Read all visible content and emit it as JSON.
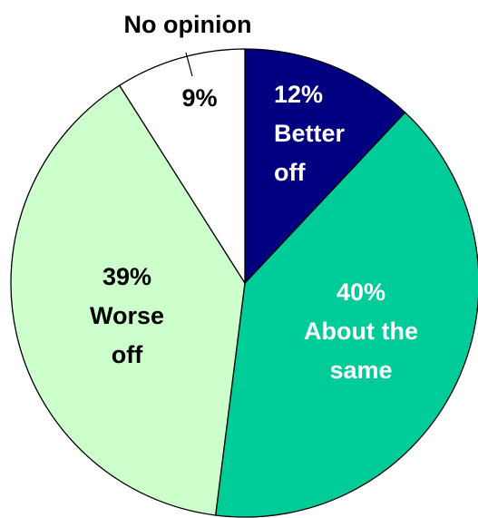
{
  "chart_data": {
    "type": "pie",
    "slices": [
      {
        "key": "better",
        "percent_label": "12%",
        "label_lines": [
          "Better",
          "off"
        ],
        "value": 12,
        "color": "#000080",
        "text_color": "#ffffff"
      },
      {
        "key": "same",
        "percent_label": "40%",
        "label_lines": [
          "About the",
          "same"
        ],
        "value": 40,
        "color": "#00cc99",
        "text_color": "#ffffff"
      },
      {
        "key": "worse",
        "percent_label": "39%",
        "label_lines": [
          "Worse",
          "off"
        ],
        "value": 39,
        "color": "#ccffcc",
        "text_color": "#000000"
      },
      {
        "key": "noop",
        "percent_label": "9%",
        "label_lines": [],
        "value": 9,
        "color": "#ffffff",
        "text_color": "#000000"
      }
    ],
    "callout_label": "No opinion",
    "outline_color": "#000000"
  }
}
